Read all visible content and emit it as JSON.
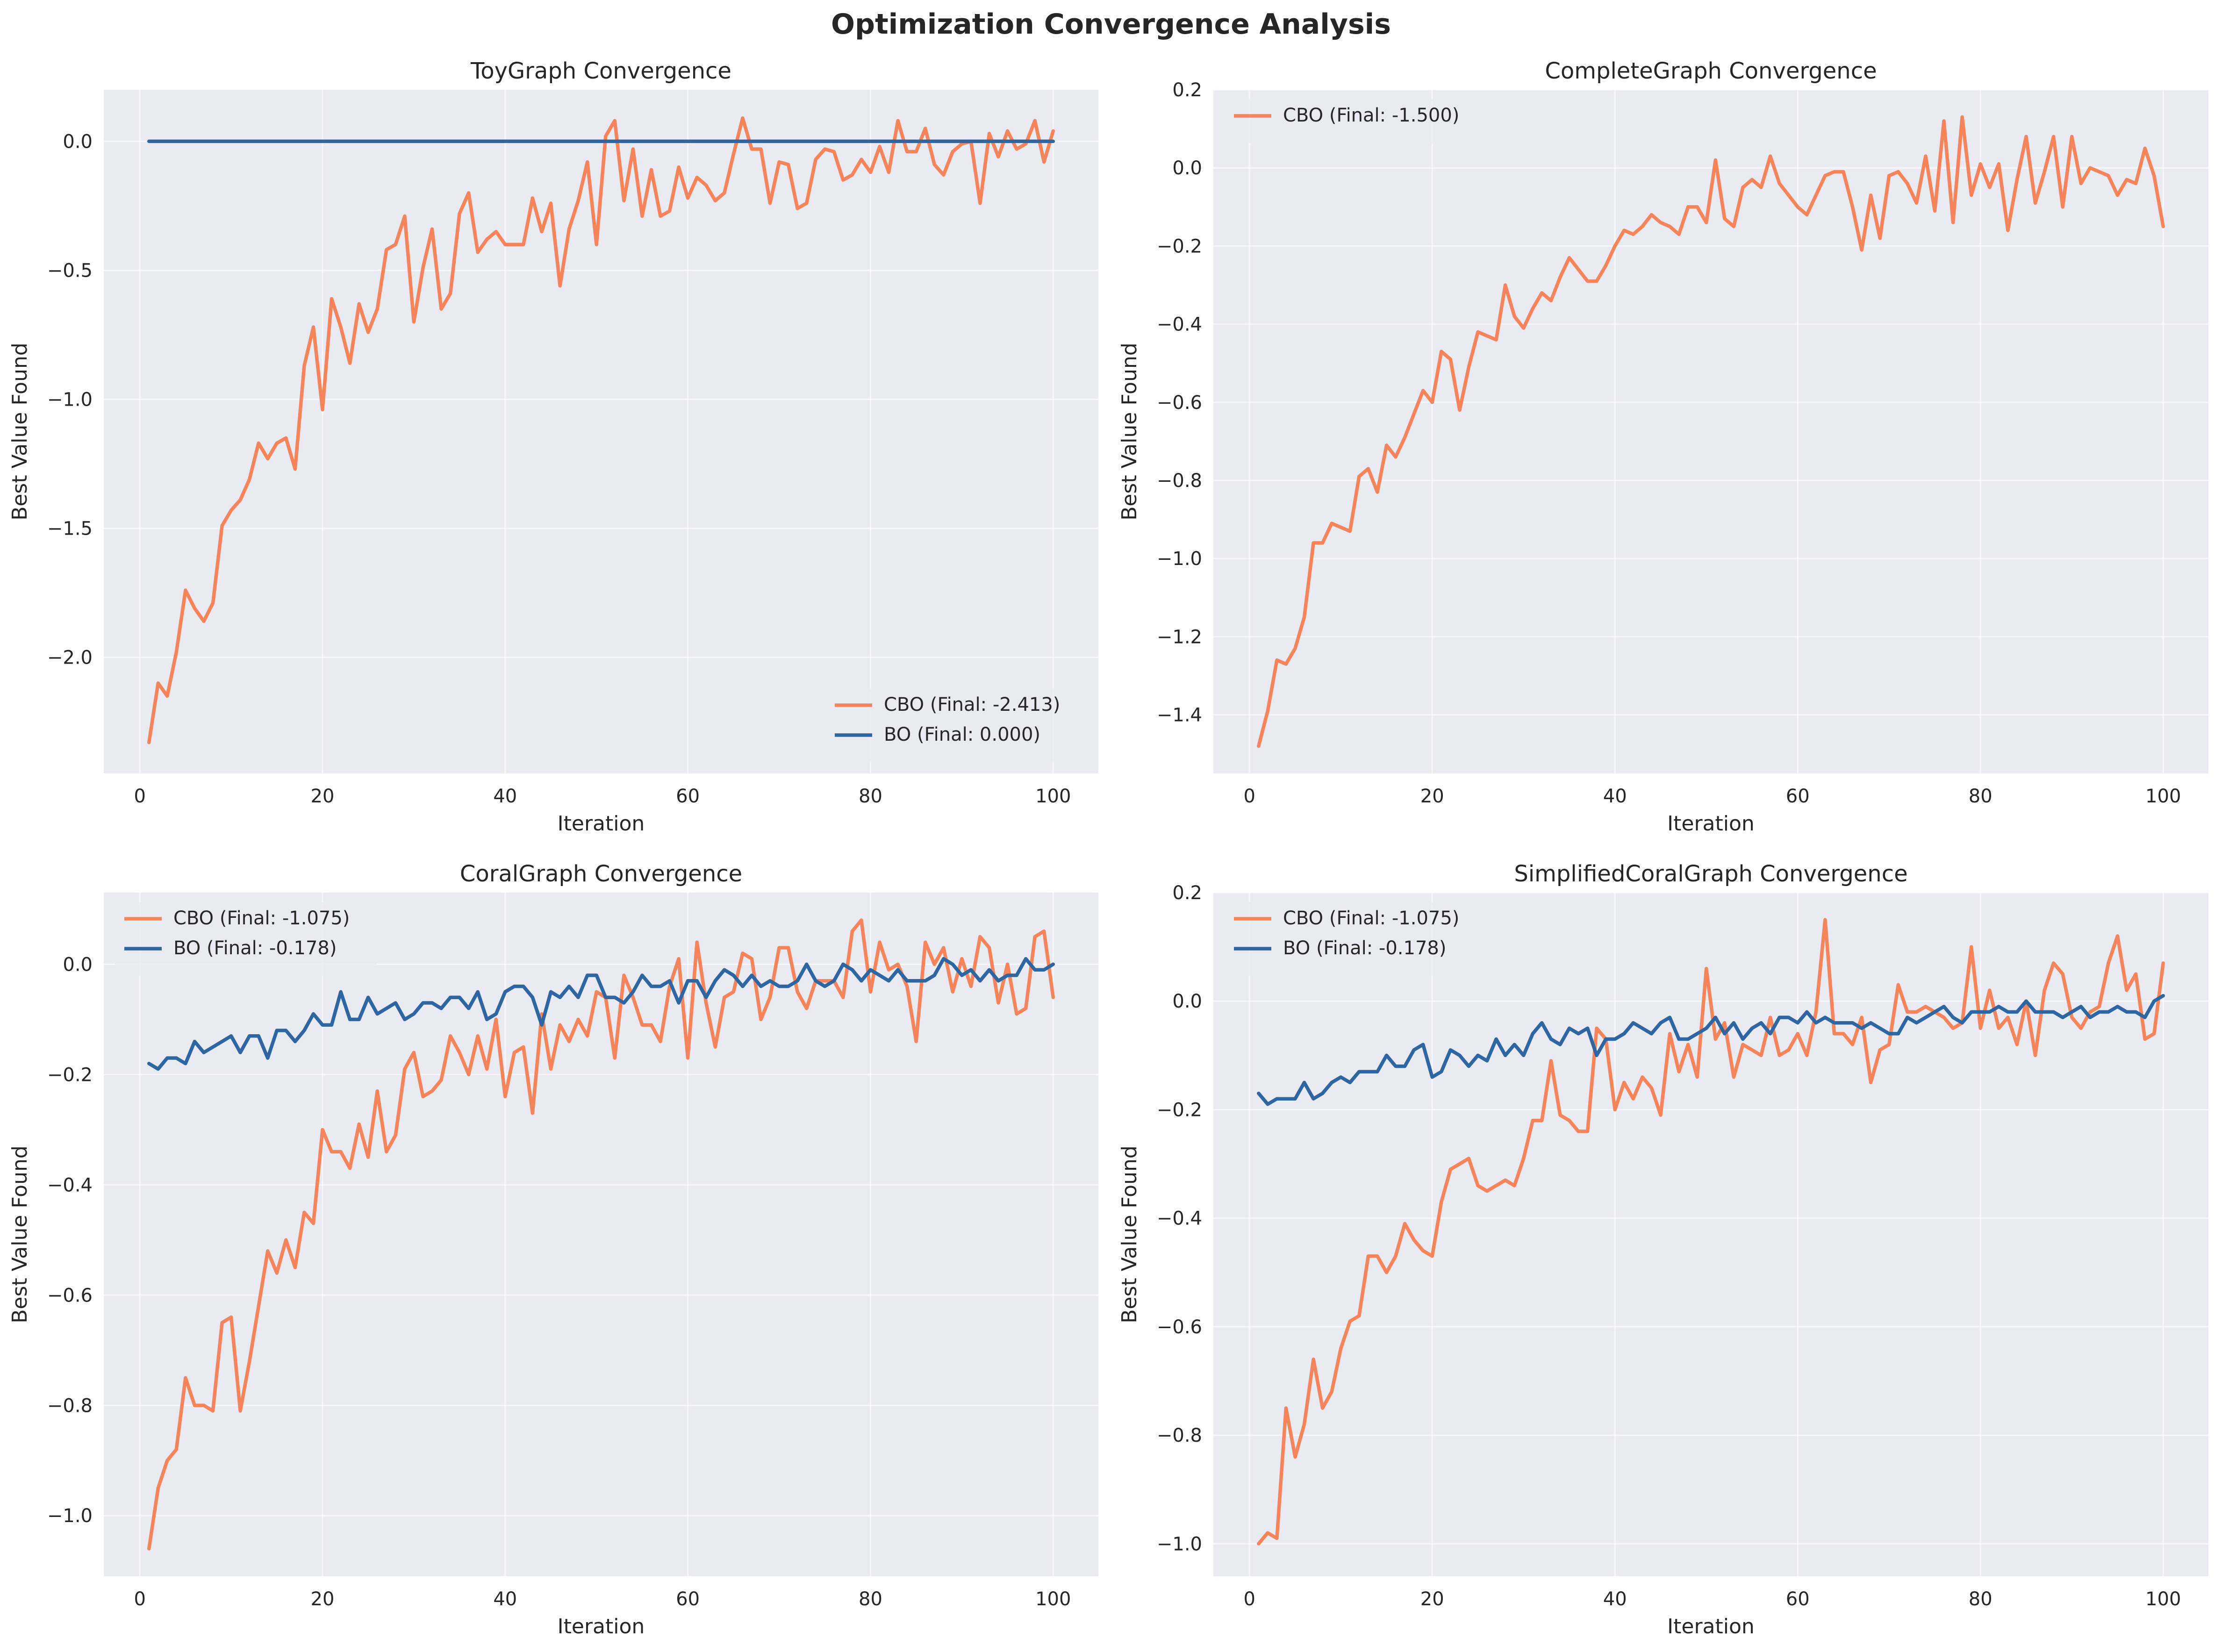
{
  "figure": {
    "suptitle": "Optimization Convergence Analysis",
    "colors": {
      "cbo": "#f5845a",
      "bo": "#2e66a3",
      "panel_bg": "#eaeaf2",
      "grid": "#ffffff",
      "text": "#262626"
    }
  },
  "chart_data": [
    {
      "type": "line",
      "title": "ToyGraph Convergence",
      "xlabel": "Iteration",
      "ylabel": "Best Value Found",
      "xlim": [
        -3.95,
        104.95
      ],
      "ylim": [
        -2.45,
        0.2
      ],
      "xticks": [
        0,
        20,
        40,
        60,
        80,
        100
      ],
      "yticks": [
        -2.0,
        -1.5,
        -1.0,
        -0.5,
        0.0
      ],
      "ytick_labels": [
        "−2.0",
        "−1.5",
        "−1.0",
        "−0.5",
        "0.0"
      ],
      "grid": true,
      "legend_position": "lower right",
      "x": "1..100",
      "series": [
        {
          "name": "CBO (Final: -2.413)",
          "color": "#f5845a",
          "values": [
            -2.33,
            -2.1,
            -2.15,
            -1.98,
            -1.74,
            -1.81,
            -1.86,
            -1.79,
            -1.49,
            -1.43,
            -1.39,
            -1.31,
            -1.17,
            -1.23,
            -1.17,
            -1.15,
            -1.27,
            -0.87,
            -0.72,
            -1.04,
            -0.61,
            -0.72,
            -0.86,
            -0.63,
            -0.74,
            -0.65,
            -0.42,
            -0.4,
            -0.29,
            -0.7,
            -0.49,
            -0.34,
            -0.65,
            -0.59,
            -0.28,
            -0.2,
            -0.43,
            -0.38,
            -0.35,
            -0.4,
            -0.4,
            -0.4,
            -0.22,
            -0.35,
            -0.24,
            -0.56,
            -0.34,
            -0.23,
            -0.08,
            -0.4,
            0.02,
            0.08,
            -0.23,
            -0.03,
            -0.29,
            -0.11,
            -0.29,
            -0.27,
            -0.1,
            -0.22,
            -0.14,
            -0.17,
            -0.23,
            -0.2,
            -0.05,
            0.09,
            -0.03,
            -0.03,
            -0.24,
            -0.08,
            -0.09,
            -0.26,
            -0.24,
            -0.07,
            -0.03,
            -0.04,
            -0.15,
            -0.13,
            -0.07,
            -0.12,
            -0.02,
            -0.12,
            0.08,
            -0.04,
            -0.04,
            0.05,
            -0.09,
            -0.13,
            -0.04,
            -0.01,
            0.0,
            -0.24,
            0.03,
            -0.06,
            0.04,
            -0.03,
            -0.01,
            0.08,
            -0.08,
            0.04
          ]
        },
        {
          "name": "BO (Final: 0.000)",
          "color": "#2e66a3",
          "values": [
            0.0,
            0.0,
            0.0,
            0.0,
            0.0,
            0.0,
            0.0,
            0.0,
            0.0,
            0.0,
            0.0,
            0.0,
            0.0,
            0.0,
            0.0,
            0.0,
            0.0,
            0.0,
            0.0,
            0.0,
            0.0,
            0.0,
            0.0,
            0.0,
            0.0,
            0.0,
            0.0,
            0.0,
            0.0,
            0.0,
            0.0,
            0.0,
            0.0,
            0.0,
            0.0,
            0.0,
            0.0,
            0.0,
            0.0,
            0.0,
            0.0,
            0.0,
            0.0,
            0.0,
            0.0,
            0.0,
            0.0,
            0.0,
            0.0,
            0.0,
            0.0,
            0.0,
            0.0,
            0.0,
            0.0,
            0.0,
            0.0,
            0.0,
            0.0,
            0.0,
            0.0,
            0.0,
            0.0,
            0.0,
            0.0,
            0.0,
            0.0,
            0.0,
            0.0,
            0.0,
            0.0,
            0.0,
            0.0,
            0.0,
            0.0,
            0.0,
            0.0,
            0.0,
            0.0,
            0.0,
            0.0,
            0.0,
            0.0,
            0.0,
            0.0,
            0.0,
            0.0,
            0.0,
            0.0,
            0.0,
            0.0,
            0.0,
            0.0,
            0.0,
            0.0,
            0.0,
            0.0,
            0.0,
            0.0,
            0.0
          ]
        }
      ]
    },
    {
      "type": "line",
      "title": "CompleteGraph Convergence",
      "xlabel": "Iteration",
      "ylabel": "Best Value Found",
      "xlim": [
        -3.95,
        104.95
      ],
      "ylim": [
        -1.55,
        0.2
      ],
      "xticks": [
        0,
        20,
        40,
        60,
        80,
        100
      ],
      "yticks": [
        -1.4,
        -1.2,
        -1.0,
        -0.8,
        -0.6,
        -0.4,
        -0.2,
        0.0,
        0.2
      ],
      "ytick_labels": [
        "−1.4",
        "−1.2",
        "−1.0",
        "−0.8",
        "−0.6",
        "−0.4",
        "−0.2",
        "0.0",
        "0.2"
      ],
      "grid": true,
      "legend_position": "upper left",
      "x": "1..100",
      "series": [
        {
          "name": "CBO (Final: -1.500)",
          "color": "#f5845a",
          "values": [
            -1.48,
            -1.39,
            -1.26,
            -1.27,
            -1.23,
            -1.15,
            -0.96,
            -0.96,
            -0.91,
            -0.92,
            -0.93,
            -0.79,
            -0.77,
            -0.83,
            -0.71,
            -0.74,
            -0.69,
            -0.63,
            -0.57,
            -0.6,
            -0.47,
            -0.49,
            -0.62,
            -0.51,
            -0.42,
            -0.43,
            -0.44,
            -0.3,
            -0.38,
            -0.41,
            -0.36,
            -0.32,
            -0.34,
            -0.28,
            -0.23,
            -0.26,
            -0.29,
            -0.29,
            -0.25,
            -0.2,
            -0.16,
            -0.17,
            -0.15,
            -0.12,
            -0.14,
            -0.15,
            -0.17,
            -0.1,
            -0.1,
            -0.14,
            0.02,
            -0.13,
            -0.15,
            -0.05,
            -0.03,
            -0.05,
            0.03,
            -0.04,
            -0.07,
            -0.1,
            -0.12,
            -0.07,
            -0.02,
            -0.01,
            -0.01,
            -0.1,
            -0.21,
            -0.07,
            -0.18,
            -0.02,
            -0.01,
            -0.04,
            -0.09,
            0.03,
            -0.11,
            0.12,
            -0.14,
            0.13,
            -0.07,
            0.01,
            -0.05,
            0.01,
            -0.16,
            -0.03,
            0.08,
            -0.09,
            -0.01,
            0.08,
            -0.1,
            0.08,
            -0.04,
            0.0,
            -0.01,
            -0.02,
            -0.07,
            -0.03,
            -0.04,
            0.05,
            -0.02,
            -0.15
          ]
        }
      ]
    },
    {
      "type": "line",
      "title": "CoralGraph Convergence",
      "xlabel": "Iteration",
      "ylabel": "Best Value Found",
      "xlim": [
        -3.95,
        104.95
      ],
      "ylim": [
        -1.11,
        0.13
      ],
      "xticks": [
        0,
        20,
        40,
        60,
        80,
        100
      ],
      "yticks": [
        -1.0,
        -0.8,
        -0.6,
        -0.4,
        -0.2,
        0.0
      ],
      "ytick_labels": [
        "−1.0",
        "−0.8",
        "−0.6",
        "−0.4",
        "−0.2",
        "0.0"
      ],
      "grid": true,
      "legend_position": "upper left",
      "x": "1..100",
      "series": [
        {
          "name": "CBO (Final: -1.075)",
          "color": "#f5845a",
          "values": [
            -1.06,
            -0.95,
            -0.9,
            -0.88,
            -0.75,
            -0.8,
            -0.8,
            -0.81,
            -0.65,
            -0.64,
            -0.81,
            -0.72,
            -0.62,
            -0.52,
            -0.56,
            -0.5,
            -0.55,
            -0.45,
            -0.47,
            -0.3,
            -0.34,
            -0.34,
            -0.37,
            -0.29,
            -0.35,
            -0.23,
            -0.34,
            -0.31,
            -0.19,
            -0.16,
            -0.24,
            -0.23,
            -0.21,
            -0.13,
            -0.16,
            -0.2,
            -0.13,
            -0.19,
            -0.1,
            -0.24,
            -0.16,
            -0.15,
            -0.27,
            -0.09,
            -0.19,
            -0.11,
            -0.14,
            -0.1,
            -0.13,
            -0.05,
            -0.06,
            -0.17,
            -0.02,
            -0.06,
            -0.11,
            -0.11,
            -0.14,
            -0.04,
            0.01,
            -0.17,
            0.04,
            -0.07,
            -0.15,
            -0.06,
            -0.05,
            0.02,
            0.01,
            -0.1,
            -0.06,
            0.03,
            0.03,
            -0.05,
            -0.08,
            -0.03,
            -0.03,
            -0.03,
            -0.06,
            0.06,
            0.08,
            -0.05,
            0.04,
            -0.01,
            0.0,
            -0.04,
            -0.14,
            0.04,
            0.0,
            0.03,
            -0.05,
            0.01,
            -0.04,
            0.05,
            0.03,
            -0.07,
            0.0,
            -0.09,
            -0.08,
            0.05,
            0.06,
            -0.06
          ]
        },
        {
          "name": "BO (Final: -0.178)",
          "color": "#2e66a3",
          "values": [
            -0.18,
            -0.19,
            -0.17,
            -0.17,
            -0.18,
            -0.14,
            -0.16,
            -0.15,
            -0.14,
            -0.13,
            -0.16,
            -0.13,
            -0.13,
            -0.17,
            -0.12,
            -0.12,
            -0.14,
            -0.12,
            -0.09,
            -0.11,
            -0.11,
            -0.05,
            -0.1,
            -0.1,
            -0.06,
            -0.09,
            -0.08,
            -0.07,
            -0.1,
            -0.09,
            -0.07,
            -0.07,
            -0.08,
            -0.06,
            -0.06,
            -0.08,
            -0.05,
            -0.1,
            -0.09,
            -0.05,
            -0.04,
            -0.04,
            -0.06,
            -0.11,
            -0.05,
            -0.06,
            -0.04,
            -0.06,
            -0.02,
            -0.02,
            -0.06,
            -0.06,
            -0.07,
            -0.05,
            -0.02,
            -0.04,
            -0.04,
            -0.03,
            -0.07,
            -0.03,
            -0.03,
            -0.06,
            -0.03,
            -0.01,
            -0.02,
            -0.04,
            -0.02,
            -0.04,
            -0.03,
            -0.04,
            -0.04,
            -0.03,
            0.0,
            -0.03,
            -0.04,
            -0.03,
            0.0,
            -0.01,
            -0.03,
            -0.01,
            -0.02,
            -0.03,
            -0.01,
            -0.03,
            -0.03,
            -0.03,
            -0.02,
            0.01,
            0.0,
            -0.02,
            -0.01,
            -0.03,
            -0.01,
            -0.03,
            -0.02,
            -0.02,
            0.01,
            -0.01,
            -0.01,
            0.0
          ]
        }
      ]
    },
    {
      "type": "line",
      "title": "SimplifiedCoralGraph Convergence",
      "xlabel": "Iteration",
      "ylabel": "Best Value Found",
      "xlim": [
        -3.95,
        104.95
      ],
      "ylim": [
        -1.06,
        0.2
      ],
      "xticks": [
        0,
        20,
        40,
        60,
        80,
        100
      ],
      "yticks": [
        -1.0,
        -0.8,
        -0.6,
        -0.4,
        -0.2,
        0.0,
        0.2
      ],
      "ytick_labels": [
        "−1.0",
        "−0.8",
        "−0.6",
        "−0.4",
        "−0.2",
        "0.0",
        "0.2"
      ],
      "grid": true,
      "legend_position": "upper left",
      "x": "1..100",
      "series": [
        {
          "name": "CBO (Final: -1.075)",
          "color": "#f5845a",
          "values": [
            -1.0,
            -0.98,
            -0.99,
            -0.75,
            -0.84,
            -0.78,
            -0.66,
            -0.75,
            -0.72,
            -0.64,
            -0.59,
            -0.58,
            -0.47,
            -0.47,
            -0.5,
            -0.47,
            -0.41,
            -0.44,
            -0.46,
            -0.47,
            -0.37,
            -0.31,
            -0.3,
            -0.29,
            -0.34,
            -0.35,
            -0.34,
            -0.33,
            -0.34,
            -0.29,
            -0.22,
            -0.22,
            -0.11,
            -0.21,
            -0.22,
            -0.24,
            -0.24,
            -0.05,
            -0.07,
            -0.2,
            -0.15,
            -0.18,
            -0.14,
            -0.16,
            -0.21,
            -0.06,
            -0.13,
            -0.08,
            -0.14,
            0.06,
            -0.07,
            -0.04,
            -0.14,
            -0.08,
            -0.09,
            -0.1,
            -0.03,
            -0.1,
            -0.09,
            -0.06,
            -0.1,
            -0.02,
            0.15,
            -0.06,
            -0.06,
            -0.08,
            -0.03,
            -0.15,
            -0.09,
            -0.08,
            0.03,
            -0.02,
            -0.02,
            -0.01,
            -0.02,
            -0.03,
            -0.05,
            -0.04,
            0.1,
            -0.05,
            0.02,
            -0.05,
            -0.03,
            -0.08,
            0.0,
            -0.1,
            0.02,
            0.07,
            0.05,
            -0.03,
            -0.05,
            -0.02,
            -0.01,
            0.07,
            0.12,
            0.02,
            0.05,
            -0.07,
            -0.06,
            0.07
          ]
        },
        {
          "name": "BO (Final: -0.178)",
          "color": "#2e66a3",
          "values": [
            -0.17,
            -0.19,
            -0.18,
            -0.18,
            -0.18,
            -0.15,
            -0.18,
            -0.17,
            -0.15,
            -0.14,
            -0.15,
            -0.13,
            -0.13,
            -0.13,
            -0.1,
            -0.12,
            -0.12,
            -0.09,
            -0.08,
            -0.14,
            -0.13,
            -0.09,
            -0.1,
            -0.12,
            -0.1,
            -0.11,
            -0.07,
            -0.1,
            -0.08,
            -0.1,
            -0.06,
            -0.04,
            -0.07,
            -0.08,
            -0.05,
            -0.06,
            -0.05,
            -0.1,
            -0.07,
            -0.07,
            -0.06,
            -0.04,
            -0.05,
            -0.06,
            -0.04,
            -0.03,
            -0.07,
            -0.07,
            -0.06,
            -0.05,
            -0.03,
            -0.06,
            -0.04,
            -0.07,
            -0.05,
            -0.04,
            -0.06,
            -0.03,
            -0.03,
            -0.04,
            -0.02,
            -0.04,
            -0.03,
            -0.04,
            -0.04,
            -0.04,
            -0.05,
            -0.04,
            -0.05,
            -0.06,
            -0.06,
            -0.03,
            -0.04,
            -0.03,
            -0.02,
            -0.01,
            -0.03,
            -0.04,
            -0.02,
            -0.02,
            -0.02,
            -0.01,
            -0.02,
            -0.02,
            0.0,
            -0.02,
            -0.02,
            -0.02,
            -0.03,
            -0.02,
            -0.01,
            -0.03,
            -0.02,
            -0.02,
            -0.01,
            -0.02,
            -0.02,
            -0.03,
            0.0,
            0.01
          ]
        }
      ]
    }
  ]
}
